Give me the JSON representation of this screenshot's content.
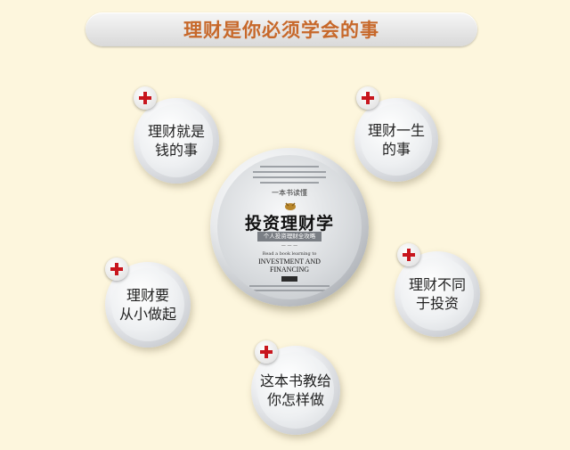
{
  "header": {
    "title": "理财是你必须学会的事"
  },
  "book": {
    "series_label": "一本书读懂",
    "title": "投资理财学",
    "tagline": "个人投资理财全攻略",
    "english_small": "Read a book learning to",
    "english_title": "INVESTMENT AND\nFINANCING"
  },
  "bubbles": [
    {
      "label": "理财就是\n钱的事",
      "icon": "plus-icon"
    },
    {
      "label": "理财一生\n的事",
      "icon": "plus-icon"
    },
    {
      "label": "理财要\n从小做起",
      "icon": "plus-icon"
    },
    {
      "label": "理财不同\n于投资",
      "icon": "plus-icon"
    },
    {
      "label": "这本书教给\n你怎样做",
      "icon": "plus-icon"
    }
  ],
  "colors": {
    "background": "#fdf6dd",
    "title_text": "#c7682a",
    "plus_red": "#c8161e"
  }
}
